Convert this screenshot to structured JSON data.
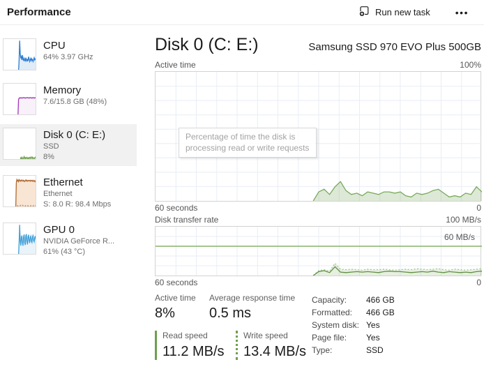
{
  "header": {
    "title": "Performance",
    "run_new_task": "Run new task",
    "more_menu": "•••"
  },
  "sidebar": {
    "items": [
      {
        "id": "cpu",
        "title": "CPU",
        "line1": "64% 3.97 GHz",
        "line2": ""
      },
      {
        "id": "memory",
        "title": "Memory",
        "line1": "7.6/15.8 GB (48%)",
        "line2": ""
      },
      {
        "id": "disk",
        "title": "Disk 0 (C: E:)",
        "line1": "SSD",
        "line2": "8%"
      },
      {
        "id": "ethernet",
        "title": "Ethernet",
        "line1": "Ethernet",
        "line2": "S: 8.0 R: 98.4 Mbps"
      },
      {
        "id": "gpu",
        "title": "GPU 0",
        "line1": "NVIDIA GeForce R...",
        "line2": "61% (43 °C)"
      }
    ]
  },
  "main": {
    "title": "Disk 0 (C: E:)",
    "subtitle": "Samsung SSD 970 EVO Plus 500GB",
    "chart1": {
      "label": "Active time",
      "max_label": "100%",
      "x_left": "60 seconds",
      "x_right": "0",
      "tooltip": "Percentage of time the disk is processing read or write requests"
    },
    "chart2": {
      "label": "Disk transfer rate",
      "max_label": "100 MB/s",
      "threshold_label": "60 MB/s",
      "x_left": "60 seconds",
      "x_right": "0"
    },
    "stats": {
      "active_time_label": "Active time",
      "active_time_value": "8%",
      "avg_response_label": "Average response time",
      "avg_response_value": "0.5 ms",
      "read_speed_label": "Read speed",
      "read_speed_value": "11.2 MB/s",
      "write_speed_label": "Write speed",
      "write_speed_value": "13.4 MB/s",
      "details": [
        {
          "label": "Capacity:",
          "value": "466 GB"
        },
        {
          "label": "Formatted:",
          "value": "466 GB"
        },
        {
          "label": "System disk:",
          "value": "Yes"
        },
        {
          "label": "Page file:",
          "value": "Yes"
        },
        {
          "label": "Type:",
          "value": "SSD"
        }
      ]
    }
  },
  "colors": {
    "disk_green": "#6f9f4e",
    "grid": "#e8eef4",
    "chart_border": "#d2d2d2",
    "selected_bg": "#f1f1f1"
  },
  "chart_data": [
    {
      "id": "disk-active",
      "type": "area",
      "title": "Active time",
      "xlabel_left": "60 seconds",
      "xlabel_right": "0",
      "ylim": [
        0,
        100
      ],
      "x_range_seconds": 60,
      "grid": {
        "cols": 16,
        "rows": 9,
        "color": "#e8eef4"
      },
      "series": [
        {
          "name": "active-time",
          "start": 29,
          "stroke": "#79a85b",
          "fill": "rgba(121,168,91,0.25)",
          "values": [
            0,
            7,
            9,
            5,
            11,
            15,
            8,
            5,
            6,
            4,
            7,
            6,
            5,
            7,
            7,
            6,
            7,
            4,
            3,
            6,
            5,
            6,
            8,
            9,
            6,
            3,
            4,
            3,
            6,
            5,
            11,
            7
          ]
        }
      ]
    },
    {
      "id": "disk-transfer",
      "type": "area",
      "title": "Disk transfer rate",
      "xlabel_left": "60 seconds",
      "xlabel_right": "0",
      "ylim": [
        0,
        100
      ],
      "x_range_seconds": 60,
      "grid": {
        "cols": 16,
        "rows": 5,
        "color": "#e8eef4"
      },
      "threshold": {
        "value": 60,
        "label": "60 MB/s",
        "color": "#86b369"
      },
      "series": [
        {
          "name": "read-speed",
          "start": 29,
          "dash": true,
          "stroke": "#a3c888",
          "fill": "rgba(121,168,91,0.18)",
          "values": [
            0,
            10,
            12,
            9,
            25,
            13,
            12,
            13,
            12,
            11,
            13,
            12,
            12,
            13,
            12,
            11,
            12,
            13,
            12,
            14,
            13,
            12,
            13,
            14,
            12,
            11,
            13,
            12,
            11,
            12,
            13,
            14
          ]
        },
        {
          "name": "write-speed",
          "start": 29,
          "stroke": "#5e8f41",
          "values": [
            0,
            8,
            10,
            6,
            18,
            7,
            6,
            7,
            8,
            7,
            8,
            7,
            6,
            8,
            9,
            8,
            8,
            7,
            6,
            7,
            8,
            7,
            9,
            7,
            6,
            8,
            7,
            6,
            7,
            6,
            8,
            9
          ]
        }
      ]
    },
    {
      "id": "thumb-cpu",
      "type": "area",
      "title": "CPU utilization thumbnail",
      "ylim": [
        0,
        100
      ],
      "series": [
        {
          "name": "cpu",
          "start": 27,
          "stroke": "#2e7dd1",
          "fill": "rgba(46,125,209,0.15)",
          "values": [
            0,
            35,
            95,
            55,
            40,
            45,
            35,
            50,
            38,
            32,
            40,
            35,
            30,
            42,
            36,
            30,
            38,
            32,
            45,
            38,
            30,
            35,
            40,
            33,
            38,
            35,
            30,
            36,
            42,
            35,
            38,
            40,
            36,
            34
          ]
        }
      ]
    },
    {
      "id": "thumb-memory",
      "type": "area",
      "title": "Memory usage thumbnail",
      "ylim": [
        0,
        100
      ],
      "series": [
        {
          "name": "memory",
          "start": 25,
          "stroke": "#a238b8",
          "fill": "rgba(162,56,184,0.07)",
          "values": [
            0,
            2,
            50,
            55,
            56,
            55,
            56,
            56,
            55,
            56,
            56,
            57,
            56,
            56,
            55,
            56,
            56,
            56,
            57,
            56,
            56,
            55,
            56,
            57,
            56,
            56,
            55,
            56,
            57,
            56,
            55,
            56,
            56,
            57,
            56,
            57
          ]
        }
      ]
    },
    {
      "id": "thumb-disk",
      "type": "area",
      "title": "Disk activity thumbnail",
      "ylim": [
        0,
        100
      ],
      "series": [
        {
          "name": "disk",
          "start": 30,
          "stroke": "#6f9f4e",
          "fill": "rgba(111,159,78,0.2)",
          "values": [
            0,
            8,
            5,
            10,
            6,
            4,
            8,
            12,
            6,
            9,
            5,
            8,
            10,
            6,
            8,
            5,
            9,
            7,
            10,
            6,
            8,
            11,
            6,
            9,
            7,
            5,
            8,
            10,
            7,
            9,
            6
          ]
        }
      ]
    },
    {
      "id": "thumb-ethernet",
      "type": "area",
      "title": "Ethernet throughput thumbnail",
      "ylim": [
        0,
        100
      ],
      "series": [
        {
          "name": "receive",
          "start": 22,
          "stroke": "#b06a32",
          "fill": "rgba(230,150,80,0.25)",
          "values": [
            0,
            78,
            88,
            84,
            86,
            82,
            88,
            85,
            83,
            86,
            84,
            87,
            85,
            83,
            86,
            84,
            82,
            85,
            87,
            84,
            86,
            83,
            85,
            84,
            86,
            85,
            83,
            86,
            84,
            85,
            83,
            86,
            84,
            82,
            85,
            83,
            80,
            78,
            82
          ]
        },
        {
          "name": "send",
          "start": 22,
          "dash": true,
          "stroke": "#c08050",
          "values": [
            0,
            6,
            8,
            7,
            6,
            8,
            7,
            6,
            7,
            8,
            6,
            7,
            8,
            7,
            6,
            7,
            8,
            6,
            7,
            6,
            8,
            7,
            6,
            7,
            8,
            7,
            6,
            7,
            6,
            8,
            7,
            6,
            7,
            8,
            6,
            7,
            6,
            7,
            8
          ]
        }
      ]
    },
    {
      "id": "thumb-gpu",
      "type": "area",
      "title": "GPU utilization thumbnail",
      "ylim": [
        0,
        100
      ],
      "series": [
        {
          "name": "gpu",
          "start": 27,
          "stroke": "#3f9fd8",
          "fill": "rgba(63,159,216,0.12)",
          "values": [
            0,
            40,
            95,
            45,
            30,
            55,
            62,
            38,
            30,
            58,
            65,
            40,
            32,
            60,
            66,
            42,
            34,
            58,
            64,
            45,
            38,
            56,
            60,
            44,
            40,
            58,
            62,
            46,
            42,
            55,
            60,
            48,
            44,
            58
          ]
        }
      ]
    }
  ]
}
